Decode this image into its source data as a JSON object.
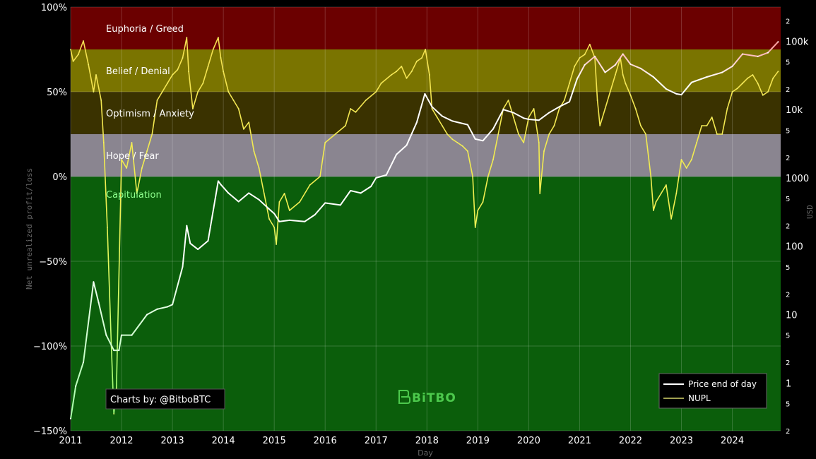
{
  "chart_data": {
    "type": "line",
    "xlabel": "Day",
    "ylabel_left": "Net unrealized profit/loss",
    "ylabel_right": "USD",
    "x_ticks": [
      "2011",
      "2012",
      "2013",
      "2014",
      "2015",
      "2016",
      "2017",
      "2018",
      "2019",
      "2020",
      "2021",
      "2022",
      "2023",
      "2024"
    ],
    "xlim": [
      2011.0,
      2024.95
    ],
    "y_left": {
      "range": [
        -150,
        100
      ],
      "ticks": [
        {
          "value": 100,
          "label": "100%"
        },
        {
          "value": 50,
          "label": "50%"
        },
        {
          "value": 0,
          "label": "0%"
        },
        {
          "value": -50,
          "label": "−50%"
        },
        {
          "value": -100,
          "label": "−100%"
        },
        {
          "value": -150,
          "label": "−150%"
        }
      ]
    },
    "y_right": {
      "scale": "log",
      "range_log10": [
        -0.7,
        5.5
      ],
      "major_ticks": [
        {
          "value": 100000,
          "label": "100k"
        },
        {
          "value": 10000,
          "label": "10k"
        },
        {
          "value": 1000,
          "label": "1000"
        },
        {
          "value": 100,
          "label": "100"
        },
        {
          "value": 10,
          "label": "10"
        },
        {
          "value": 1,
          "label": "1"
        }
      ],
      "minor_ticks": [
        {
          "value": 200000,
          "label": "2"
        },
        {
          "value": 50000,
          "label": "5"
        },
        {
          "value": 20000,
          "label": "2"
        },
        {
          "value": 5000,
          "label": "5"
        },
        {
          "value": 2000,
          "label": "2"
        },
        {
          "value": 500,
          "label": "5"
        },
        {
          "value": 200,
          "label": "2"
        },
        {
          "value": 50,
          "label": "5"
        },
        {
          "value": 20,
          "label": "2"
        },
        {
          "value": 5,
          "label": "5"
        },
        {
          "value": 2,
          "label": "2"
        },
        {
          "value": 0.5,
          "label": "5"
        },
        {
          "value": 0.2,
          "label": "2"
        }
      ]
    },
    "zones": [
      {
        "label": "Euphoria / Greed",
        "from": 75,
        "to": 100,
        "fill": "#6b0000",
        "text": "#ffffff"
      },
      {
        "label": "Belief / Denial",
        "from": 50,
        "to": 75,
        "fill": "#7a7400",
        "text": "#ffffff"
      },
      {
        "label": "Optimism / Anxiety",
        "from": 25,
        "to": 50,
        "fill": "#3a3200",
        "text": "#ffffff"
      },
      {
        "label": "Hope / Fear",
        "from": 0,
        "to": 25,
        "fill": "#8a8590",
        "text": "#ffffff"
      },
      {
        "label": "Capitulation",
        "from": -150,
        "to": 0,
        "fill": "#0b5e0b",
        "text": "#8dff8d"
      }
    ],
    "series": [
      {
        "name": "Price end of day",
        "axis": "right",
        "color": "#ffffff",
        "x": [
          2011.0,
          2011.1,
          2011.25,
          2011.45,
          2011.55,
          2011.7,
          2011.85,
          2011.95,
          2012.0,
          2012.2,
          2012.5,
          2012.7,
          2012.9,
          2013.0,
          2013.2,
          2013.28,
          2013.35,
          2013.5,
          2013.7,
          2013.9,
          2013.95,
          2014.1,
          2014.3,
          2014.5,
          2014.7,
          2014.9,
          2015.0,
          2015.1,
          2015.3,
          2015.6,
          2015.8,
          2016.0,
          2016.3,
          2016.5,
          2016.7,
          2016.9,
          2017.0,
          2017.2,
          2017.4,
          2017.6,
          2017.8,
          2017.96,
          2018.1,
          2018.3,
          2018.5,
          2018.8,
          2018.95,
          2019.1,
          2019.3,
          2019.5,
          2019.7,
          2019.9,
          2020.0,
          2020.2,
          2020.4,
          2020.6,
          2020.8,
          2020.95,
          2021.1,
          2021.3,
          2021.5,
          2021.7,
          2021.85,
          2022.0,
          2022.2,
          2022.45,
          2022.7,
          2022.9,
          2023.0,
          2023.2,
          2023.5,
          2023.8,
          2024.0,
          2024.2,
          2024.5,
          2024.7,
          2024.9
        ],
        "values": [
          0.3,
          0.9,
          2,
          30,
          15,
          5,
          3,
          3,
          5,
          5,
          10,
          12,
          13,
          14,
          50,
          200,
          110,
          90,
          120,
          900,
          800,
          600,
          450,
          600,
          480,
          350,
          300,
          230,
          240,
          230,
          290,
          430,
          400,
          650,
          600,
          750,
          1000,
          1100,
          2200,
          3000,
          6500,
          17000,
          11000,
          8000,
          6800,
          6000,
          3700,
          3500,
          5200,
          10000,
          9000,
          7500,
          7200,
          7000,
          9000,
          11000,
          13000,
          28000,
          45000,
          60000,
          35000,
          45000,
          65000,
          46000,
          40000,
          30000,
          20000,
          17000,
          16500,
          25000,
          30000,
          35000,
          43000,
          65000,
          60000,
          68000,
          98000
        ]
      },
      {
        "name": "NUPL",
        "axis": "left",
        "color": "#e8e85a",
        "x": [
          2011.0,
          2011.05,
          2011.15,
          2011.25,
          2011.35,
          2011.45,
          2011.5,
          2011.6,
          2011.65,
          2011.72,
          2011.8,
          2011.85,
          2011.9,
          2012.0,
          2012.1,
          2012.2,
          2012.3,
          2012.4,
          2012.5,
          2012.6,
          2012.7,
          2012.8,
          2012.9,
          2013.0,
          2013.1,
          2013.2,
          2013.28,
          2013.32,
          2013.4,
          2013.5,
          2013.6,
          2013.7,
          2013.8,
          2013.9,
          2013.95,
          2014.0,
          2014.1,
          2014.2,
          2014.3,
          2014.4,
          2014.5,
          2014.6,
          2014.7,
          2014.8,
          2014.9,
          2015.0,
          2015.04,
          2015.1,
          2015.2,
          2015.3,
          2015.5,
          2015.7,
          2015.9,
          2016.0,
          2016.2,
          2016.4,
          2016.5,
          2016.6,
          2016.8,
          2017.0,
          2017.1,
          2017.3,
          2017.4,
          2017.5,
          2017.6,
          2017.7,
          2017.8,
          2017.9,
          2017.97,
          2018.05,
          2018.1,
          2018.2,
          2018.3,
          2018.4,
          2018.5,
          2018.6,
          2018.7,
          2018.8,
          2018.9,
          2018.95,
          2019.0,
          2019.1,
          2019.2,
          2019.3,
          2019.4,
          2019.5,
          2019.6,
          2019.7,
          2019.8,
          2019.9,
          2020.0,
          2020.1,
          2020.2,
          2020.22,
          2020.3,
          2020.4,
          2020.5,
          2020.6,
          2020.7,
          2020.8,
          2020.9,
          2021.0,
          2021.1,
          2021.2,
          2021.3,
          2021.35,
          2021.4,
          2021.5,
          2021.6,
          2021.7,
          2021.8,
          2021.85,
          2021.9,
          2022.0,
          2022.1,
          2022.2,
          2022.3,
          2022.4,
          2022.45,
          2022.5,
          2022.6,
          2022.7,
          2022.8,
          2022.9,
          2022.95,
          2023.0,
          2023.1,
          2023.2,
          2023.3,
          2023.4,
          2023.5,
          2023.6,
          2023.7,
          2023.8,
          2023.9,
          2024.0,
          2024.1,
          2024.2,
          2024.3,
          2024.4,
          2024.5,
          2024.6,
          2024.7,
          2024.8,
          2024.9
        ],
        "values": [
          75,
          68,
          72,
          80,
          66,
          50,
          60,
          45,
          20,
          -30,
          -100,
          -140,
          -125,
          10,
          5,
          20,
          -10,
          5,
          15,
          25,
          45,
          50,
          55,
          60,
          63,
          70,
          82,
          62,
          40,
          50,
          55,
          65,
          75,
          82,
          70,
          62,
          50,
          45,
          40,
          28,
          32,
          15,
          5,
          -10,
          -25,
          -30,
          -40,
          -15,
          -10,
          -20,
          -15,
          -5,
          0,
          20,
          25,
          30,
          40,
          38,
          45,
          50,
          55,
          60,
          62,
          65,
          58,
          62,
          68,
          70,
          75,
          60,
          40,
          35,
          30,
          25,
          22,
          20,
          18,
          15,
          0,
          -30,
          -20,
          -15,
          0,
          10,
          25,
          40,
          45,
          35,
          25,
          20,
          35,
          40,
          20,
          -10,
          15,
          25,
          30,
          40,
          45,
          55,
          65,
          70,
          72,
          78,
          70,
          45,
          30,
          40,
          50,
          60,
          70,
          60,
          55,
          48,
          40,
          30,
          25,
          0,
          -20,
          -15,
          -10,
          -5,
          -25,
          -10,
          0,
          10,
          5,
          10,
          20,
          30,
          30,
          35,
          25,
          25,
          40,
          50,
          52,
          55,
          58,
          60,
          55,
          48,
          50,
          58,
          62
        ]
      }
    ],
    "legend": {
      "position": "bottom-right"
    }
  },
  "credit": "Charts by: @BitboBTC",
  "brand": "BiTBO"
}
